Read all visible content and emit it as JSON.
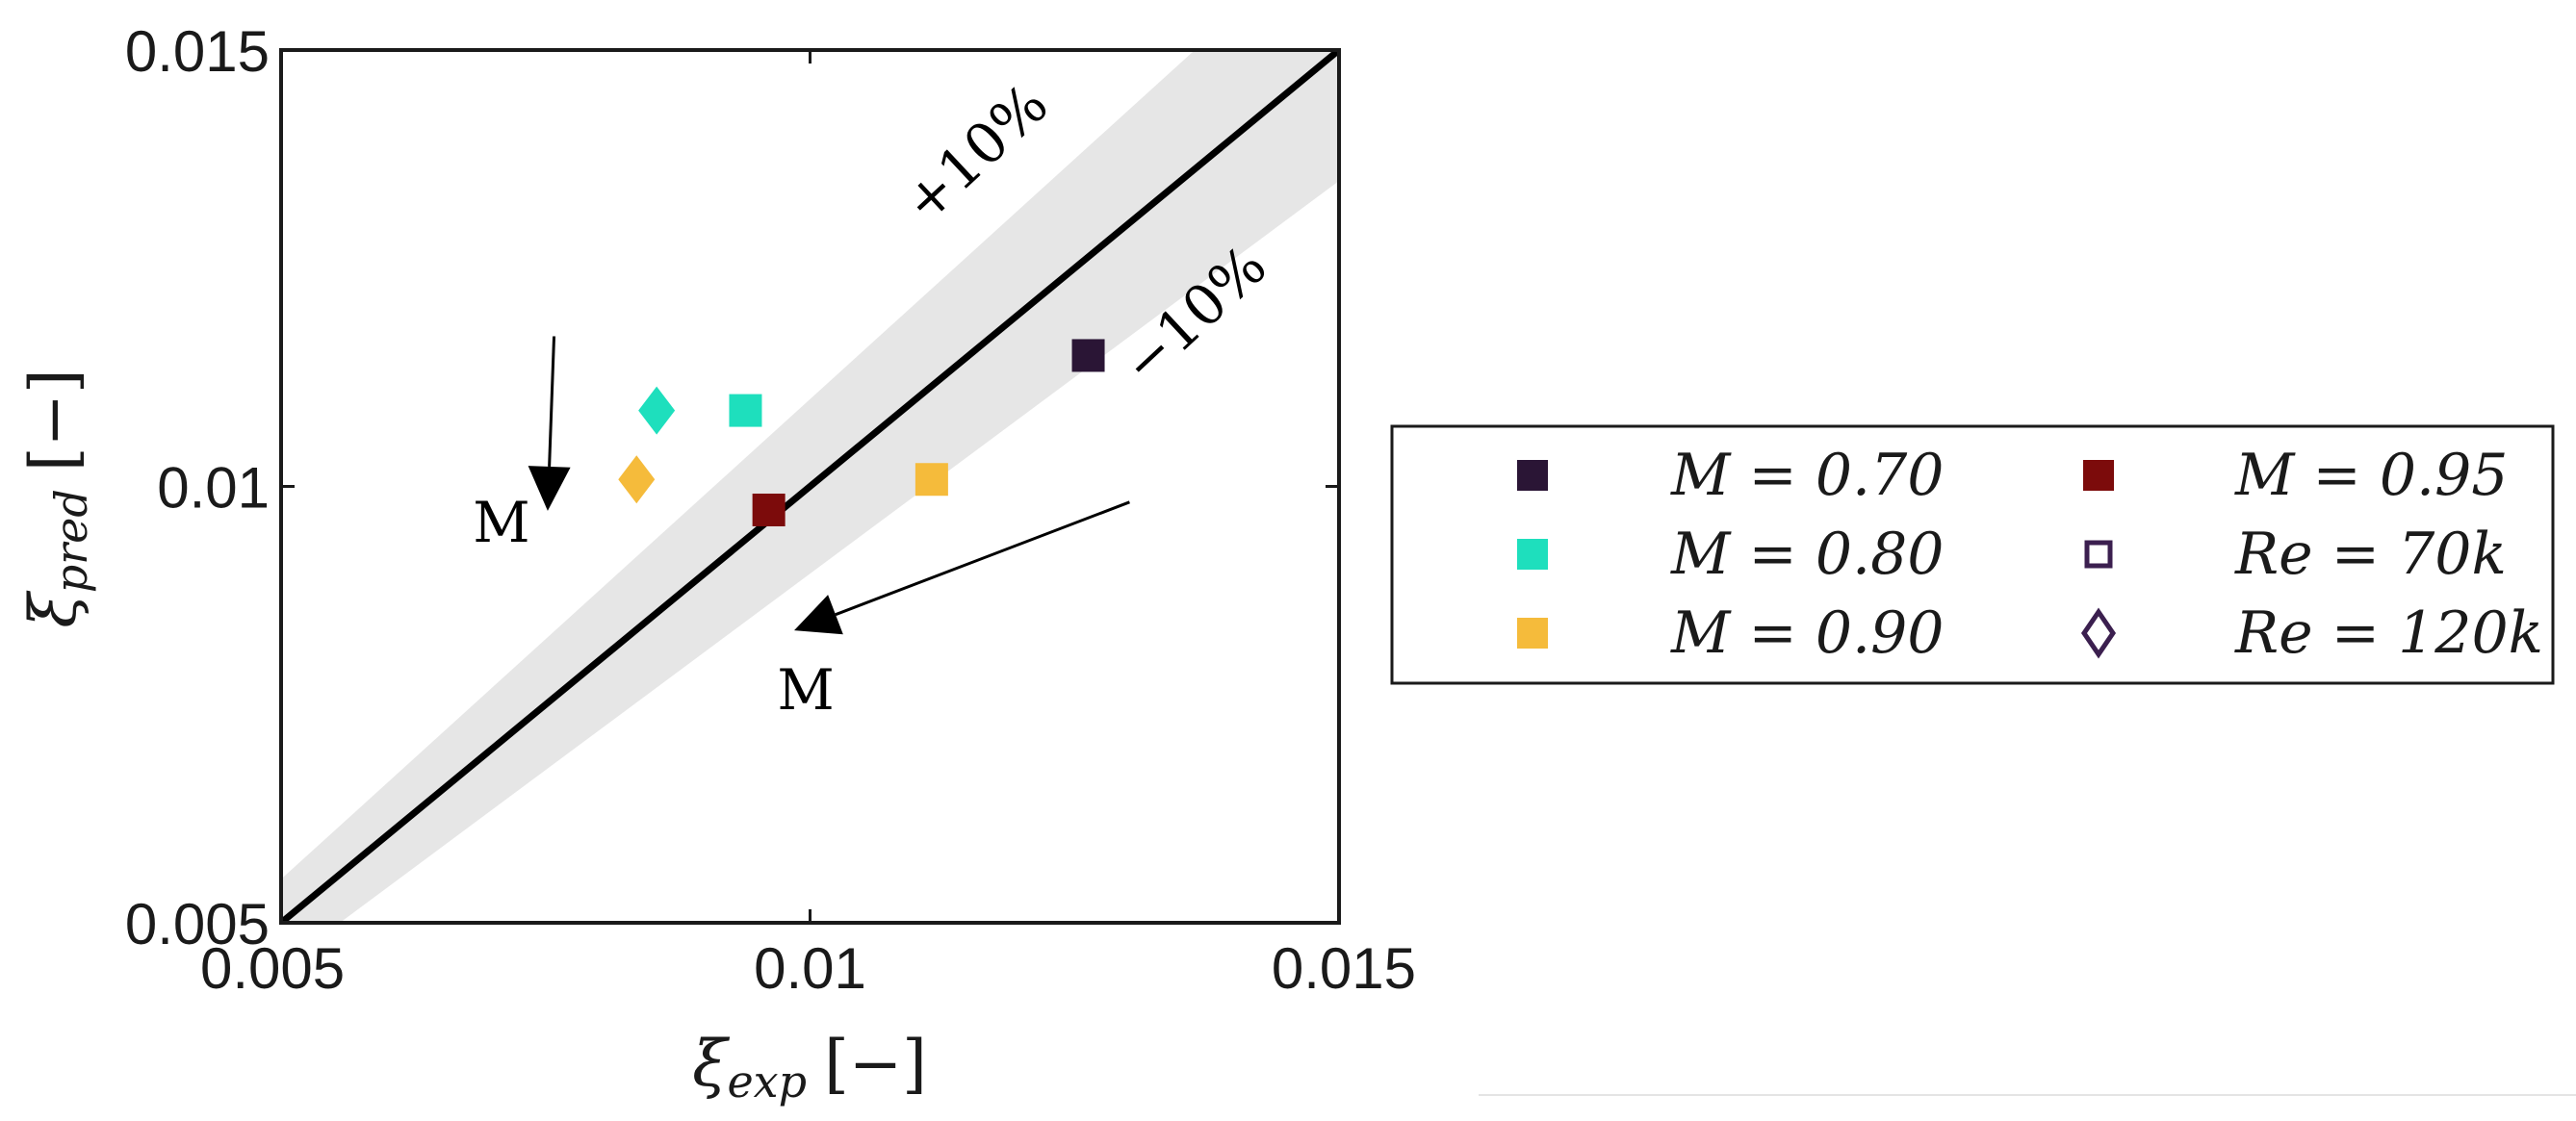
{
  "chart_data": {
    "type": "scatter",
    "xlabel": {
      "symbol": "ξ",
      "sub": "exp",
      "unit": "[−]"
    },
    "ylabel": {
      "symbol": "ξ",
      "sub": "pred",
      "unit": "[−]"
    },
    "xlim": [
      0.005,
      0.015
    ],
    "ylim": [
      0.005,
      0.015
    ],
    "xticks": [
      0.005,
      0.01,
      0.015
    ],
    "yticks": [
      0.005,
      0.01,
      0.015
    ],
    "xtick_labels": [
      "0.005",
      "0.01",
      "0.015"
    ],
    "ytick_labels": [
      "0.005",
      "0.01",
      "0.015"
    ],
    "reference_line": {
      "slope": 1
    },
    "band": {
      "upper_factor": 1.1,
      "lower_factor": 0.9,
      "color": "#e6e6e6"
    },
    "band_labels": {
      "upper": "+10%",
      "lower": "−10%"
    },
    "trend_arrows": [
      {
        "label": "M",
        "from": [
          0.00758,
          0.01172
        ],
        "to": [
          0.00752,
          0.00972
        ]
      },
      {
        "label": "M",
        "from": [
          0.01302,
          0.00982
        ],
        "to": [
          0.00985,
          0.00835
        ]
      }
    ],
    "points": [
      {
        "series": "M = 0.70",
        "re": "Re = 70k",
        "marker": "square",
        "color": "#2a1535",
        "x": 0.01263,
        "y": 0.0115
      },
      {
        "series": "M = 0.80",
        "re": "Re = 70k",
        "marker": "square",
        "color": "#1edfbd",
        "x": 0.00939,
        "y": 0.01087
      },
      {
        "series": "M = 0.90",
        "re": "Re = 70k",
        "marker": "square",
        "color": "#f5bb3b",
        "x": 0.01115,
        "y": 0.01008
      },
      {
        "series": "M = 0.95",
        "re": "Re = 70k",
        "marker": "square",
        "color": "#7c0b0b",
        "x": 0.00961,
        "y": 0.00973
      },
      {
        "series": "M = 0.80",
        "re": "Re = 120k",
        "marker": "diamond",
        "color": "#1edfbd",
        "x": 0.00855,
        "y": 0.01087
      },
      {
        "series": "M = 0.90",
        "re": "Re = 120k",
        "marker": "diamond",
        "color": "#f5bb3b",
        "x": 0.00836,
        "y": 0.01008
      }
    ],
    "legend": {
      "placement": "right",
      "entries": [
        {
          "label": "M = 0.70",
          "marker": "square",
          "color": "#2a1535",
          "filled": true
        },
        {
          "label": "M = 0.95",
          "marker": "square",
          "color": "#7c0b0b",
          "filled": true
        },
        {
          "label": "M = 0.80",
          "marker": "square",
          "color": "#1edfbd",
          "filled": true
        },
        {
          "label": "Re = 70k",
          "marker": "square",
          "color": "#3b1f4f",
          "filled": false
        },
        {
          "label": "M = 0.90",
          "marker": "square",
          "color": "#f5bb3b",
          "filled": true
        },
        {
          "label": "Re = 120k",
          "marker": "diamond",
          "color": "#3b1f4f",
          "filled": false
        }
      ]
    }
  }
}
